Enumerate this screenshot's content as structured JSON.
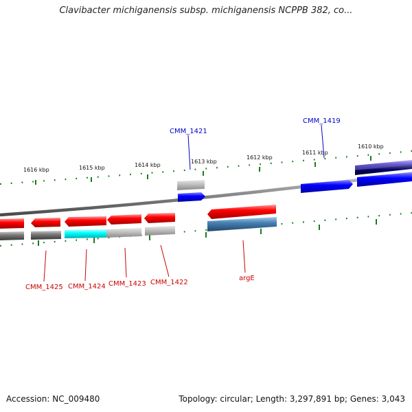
{
  "title": "Clavibacter michiganensis subsp. michiganensis NCPPB 382, co...",
  "footer": {
    "accession": "Accession: NC_009480",
    "topology": "Topology: circular; Length: 3,297,891 bp; Genes: 3,043"
  },
  "kbp_labels": [
    "1616 kbp",
    "1615 kbp",
    "1614 kbp",
    "1613 kbp",
    "1612 kbp",
    "1611 kbp",
    "1610 kbp"
  ],
  "gene_labels_forward": [
    "CMM_1421",
    "CMM_1419"
  ],
  "gene_labels_reverse": [
    "CMM_1425",
    "CMM_1424",
    "CMM_1423",
    "CMM_1422",
    "argE"
  ],
  "colors": {
    "forward_cds": "#0000ff",
    "reverse_cds": "#ff0000",
    "forward_label": "#0000cc",
    "reverse_label": "#cc0000",
    "tick": "#1a7a1a",
    "backbone": "#808080",
    "highlight_cyan": "#00ffff",
    "highlight_blue": "#4682b4",
    "highlight_purple": "#6a5acd",
    "gray_feature": "#a0a0a0"
  }
}
